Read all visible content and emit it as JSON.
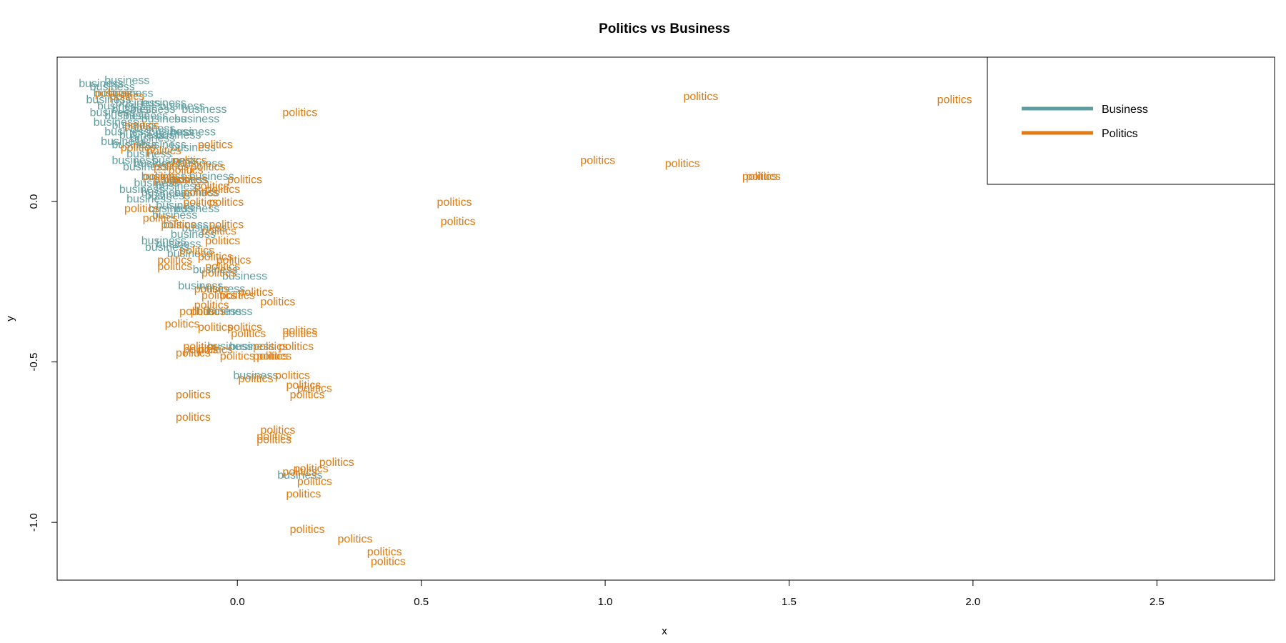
{
  "chart_data": {
    "type": "scatter",
    "title": "Politics vs Business",
    "xlabel": "x",
    "ylabel": "y",
    "xlim": [
      -0.49,
      2.82
    ],
    "ylim": [
      -1.18,
      0.45
    ],
    "x_ticks": [
      0.0,
      0.5,
      1.0,
      1.5,
      2.0,
      2.5
    ],
    "x_tick_labels": [
      "0.0",
      "0.5",
      "1.0",
      "1.5",
      "2.0",
      "2.5"
    ],
    "y_ticks": [
      -1.0,
      -0.5,
      0.0
    ],
    "y_tick_labels": [
      "-1.0",
      "-0.5",
      "0.0"
    ],
    "grid": false,
    "legend_position": "top-right",
    "series": [
      {
        "name": "Business",
        "label": "business",
        "color": "#5f9ea0",
        "points": [
          [
            -0.3,
            0.38
          ],
          [
            -0.37,
            0.37
          ],
          [
            -0.34,
            0.36
          ],
          [
            -0.33,
            0.34
          ],
          [
            -0.29,
            0.34
          ],
          [
            -0.35,
            0.32
          ],
          [
            -0.27,
            0.31
          ],
          [
            -0.2,
            0.31
          ],
          [
            -0.32,
            0.3
          ],
          [
            -0.28,
            0.29
          ],
          [
            -0.23,
            0.29
          ],
          [
            -0.15,
            0.3
          ],
          [
            -0.09,
            0.29
          ],
          [
            -0.34,
            0.28
          ],
          [
            -0.3,
            0.27
          ],
          [
            -0.25,
            0.27
          ],
          [
            -0.2,
            0.26
          ],
          [
            -0.11,
            0.26
          ],
          [
            -0.33,
            0.25
          ],
          [
            -0.28,
            0.24
          ],
          [
            -0.23,
            0.23
          ],
          [
            -0.18,
            0.22
          ],
          [
            -0.3,
            0.22
          ],
          [
            -0.26,
            0.21
          ],
          [
            -0.31,
            0.19
          ],
          [
            -0.23,
            0.2
          ],
          [
            -0.16,
            0.21
          ],
          [
            -0.12,
            0.22
          ],
          [
            -0.28,
            0.18
          ],
          [
            -0.2,
            0.18
          ],
          [
            -0.12,
            0.17
          ],
          [
            -0.24,
            0.15
          ],
          [
            -0.28,
            0.13
          ],
          [
            -0.22,
            0.12
          ],
          [
            -0.17,
            0.13
          ],
          [
            -0.1,
            0.12
          ],
          [
            -0.25,
            0.11
          ],
          [
            -0.2,
            0.08
          ],
          [
            -0.14,
            0.07
          ],
          [
            -0.07,
            0.08
          ],
          [
            -0.22,
            0.06
          ],
          [
            -0.16,
            0.05
          ],
          [
            -0.26,
            0.04
          ],
          [
            -0.2,
            0.03
          ],
          [
            -0.11,
            0.03
          ],
          [
            -0.19,
            0.02
          ],
          [
            -0.24,
            0.01
          ],
          [
            -0.16,
            -0.01
          ],
          [
            -0.18,
            -0.02
          ],
          [
            -0.11,
            -0.02
          ],
          [
            -0.17,
            -0.04
          ],
          [
            -0.14,
            -0.07
          ],
          [
            -0.09,
            -0.08
          ],
          [
            -0.12,
            -0.1
          ],
          [
            -0.2,
            -0.12
          ],
          [
            -0.16,
            -0.13
          ],
          [
            -0.19,
            -0.14
          ],
          [
            -0.13,
            -0.16
          ],
          [
            -0.06,
            -0.21
          ],
          [
            0.02,
            -0.23
          ],
          [
            -0.1,
            -0.26
          ],
          [
            -0.04,
            -0.27
          ],
          [
            -0.05,
            -0.34
          ],
          [
            -0.02,
            -0.34
          ],
          [
            0.04,
            -0.45
          ],
          [
            -0.02,
            -0.45
          ],
          [
            0.05,
            -0.54
          ],
          [
            0.17,
            -0.85
          ]
        ]
      },
      {
        "name": "Politics",
        "label": "politics",
        "color": "#e07a10",
        "points": [
          [
            1.26,
            0.33
          ],
          [
            1.95,
            0.32
          ],
          [
            0.17,
            0.28
          ],
          [
            0.98,
            0.13
          ],
          [
            1.21,
            0.12
          ],
          [
            1.42,
            0.08
          ],
          [
            1.43,
            0.08
          ],
          [
            0.59,
            0.0
          ],
          [
            0.6,
            -0.06
          ],
          [
            -0.34,
            0.34
          ],
          [
            -0.3,
            0.33
          ],
          [
            -0.26,
            0.24
          ],
          [
            -0.27,
            0.17
          ],
          [
            -0.2,
            0.16
          ],
          [
            -0.06,
            0.18
          ],
          [
            -0.13,
            0.13
          ],
          [
            -0.18,
            0.11
          ],
          [
            -0.14,
            0.1
          ],
          [
            -0.08,
            0.11
          ],
          [
            -0.21,
            0.08
          ],
          [
            -0.18,
            0.07
          ],
          [
            -0.13,
            0.07
          ],
          [
            0.02,
            0.07
          ],
          [
            -0.07,
            0.05
          ],
          [
            -0.04,
            0.04
          ],
          [
            -0.1,
            0.03
          ],
          [
            -0.1,
            0.0
          ],
          [
            -0.03,
            0.0
          ],
          [
            -0.26,
            -0.02
          ],
          [
            -0.21,
            -0.05
          ],
          [
            -0.16,
            -0.07
          ],
          [
            -0.03,
            -0.07
          ],
          [
            -0.05,
            -0.09
          ],
          [
            -0.04,
            -0.12
          ],
          [
            -0.06,
            -0.17
          ],
          [
            -0.11,
            -0.15
          ],
          [
            -0.17,
            -0.18
          ],
          [
            -0.17,
            -0.2
          ],
          [
            -0.01,
            -0.18
          ],
          [
            -0.04,
            -0.2
          ],
          [
            -0.05,
            -0.22
          ],
          [
            -0.07,
            -0.27
          ],
          [
            -0.05,
            -0.29
          ],
          [
            0.0,
            -0.29
          ],
          [
            0.05,
            -0.28
          ],
          [
            0.11,
            -0.31
          ],
          [
            -0.07,
            -0.32
          ],
          [
            -0.08,
            -0.34
          ],
          [
            -0.11,
            -0.34
          ],
          [
            -0.15,
            -0.38
          ],
          [
            -0.06,
            -0.39
          ],
          [
            0.02,
            -0.39
          ],
          [
            0.03,
            -0.41
          ],
          [
            0.17,
            -0.4
          ],
          [
            0.17,
            -0.41
          ],
          [
            0.16,
            -0.45
          ],
          [
            0.09,
            -0.45
          ],
          [
            -0.1,
            -0.45
          ],
          [
            -0.1,
            -0.46
          ],
          [
            -0.12,
            -0.47
          ],
          [
            -0.06,
            -0.46
          ],
          [
            0.0,
            -0.48
          ],
          [
            0.09,
            -0.48
          ],
          [
            0.1,
            -0.48
          ],
          [
            0.15,
            -0.54
          ],
          [
            0.18,
            -0.57
          ],
          [
            0.21,
            -0.58
          ],
          [
            0.05,
            -0.55
          ],
          [
            -0.12,
            -0.6
          ],
          [
            0.19,
            -0.6
          ],
          [
            -0.12,
            -0.67
          ],
          [
            0.11,
            -0.71
          ],
          [
            0.1,
            -0.73
          ],
          [
            0.1,
            -0.74
          ],
          [
            0.27,
            -0.81
          ],
          [
            0.2,
            -0.83
          ],
          [
            0.17,
            -0.84
          ],
          [
            0.21,
            -0.87
          ],
          [
            0.18,
            -0.91
          ],
          [
            0.19,
            -1.02
          ],
          [
            0.32,
            -1.05
          ],
          [
            0.4,
            -1.09
          ],
          [
            0.41,
            -1.12
          ]
        ]
      }
    ],
    "legend": [
      {
        "label": "Business",
        "color": "#5f9ea0"
      },
      {
        "label": "Politics",
        "color": "#e07a10"
      }
    ]
  }
}
